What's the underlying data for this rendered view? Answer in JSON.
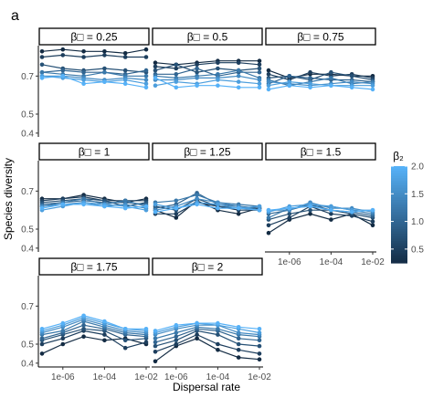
{
  "panel_letter": "a",
  "chart_data": {
    "type": "line",
    "layout": "facet-grid",
    "xlabel": "Dispersal rate",
    "ylabel": "Species diversity",
    "x_scale": "log10",
    "x": [
      1e-07,
      1e-06,
      1e-05,
      0.0001,
      0.001,
      0.01
    ],
    "x_ticks": [
      1e-06,
      0.0001,
      0.01
    ],
    "x_tick_labels": [
      "1e-06",
      "1e-04",
      "1e-02"
    ],
    "ylim": [
      0.38,
      0.86
    ],
    "y_ticks": [
      0.4,
      0.5,
      0.7
    ],
    "y_tick_labels": [
      "0.4",
      "0.5",
      "0.7"
    ],
    "grid": false,
    "legend": {
      "title": "β₂",
      "placement": "right",
      "type": "colorbar",
      "range": [
        0.25,
        2.0
      ],
      "ticks": [
        0.5,
        1.0,
        1.5,
        2.0
      ],
      "tick_labels": [
        "0.5",
        "1.0",
        "1.5",
        "2.0"
      ],
      "low_color": "#132b43",
      "high_color": "#56b1f7"
    },
    "panels": [
      {
        "strip": "β□ =  0.25",
        "series": [
          {
            "value": 0.25,
            "values": [
              0.83,
              0.84,
              0.83,
              0.83,
              0.82,
              0.84
            ]
          },
          {
            "value": 0.5,
            "values": [
              0.8,
              0.81,
              0.8,
              0.81,
              0.8,
              0.8
            ]
          },
          {
            "value": 0.75,
            "values": [
              0.76,
              0.74,
              0.73,
              0.74,
              0.73,
              0.72
            ]
          },
          {
            "value": 1.0,
            "values": [
              0.72,
              0.73,
              0.72,
              0.72,
              0.71,
              0.73
            ]
          },
          {
            "value": 1.25,
            "values": [
              0.72,
              0.71,
              0.7,
              0.72,
              0.7,
              0.7
            ]
          },
          {
            "value": 1.5,
            "values": [
              0.7,
              0.7,
              0.69,
              0.68,
              0.69,
              0.68
            ]
          },
          {
            "value": 1.75,
            "values": [
              0.7,
              0.69,
              0.68,
              0.67,
              0.68,
              0.66
            ]
          },
          {
            "value": 2.0,
            "values": [
              0.69,
              0.7,
              0.66,
              0.67,
              0.66,
              0.64
            ]
          }
        ]
      },
      {
        "strip": "β□ =  0.5",
        "series": [
          {
            "value": 0.25,
            "values": [
              0.77,
              0.76,
              0.77,
              0.78,
              0.78,
              0.78
            ]
          },
          {
            "value": 0.5,
            "values": [
              0.75,
              0.74,
              0.76,
              0.77,
              0.77,
              0.76
            ]
          },
          {
            "value": 0.75,
            "values": [
              0.73,
              0.76,
              0.72,
              0.74,
              0.73,
              0.74
            ]
          },
          {
            "value": 1.0,
            "values": [
              0.71,
              0.71,
              0.74,
              0.7,
              0.72,
              0.72
            ]
          },
          {
            "value": 1.25,
            "values": [
              0.7,
              0.69,
              0.7,
              0.71,
              0.73,
              0.69
            ]
          },
          {
            "value": 1.5,
            "values": [
              0.68,
              0.68,
              0.69,
              0.69,
              0.7,
              0.68
            ]
          },
          {
            "value": 1.75,
            "values": [
              0.65,
              0.67,
              0.66,
              0.68,
              0.67,
              0.66
            ]
          },
          {
            "value": 2.0,
            "values": [
              0.69,
              0.64,
              0.65,
              0.65,
              0.64,
              0.64
            ]
          }
        ]
      },
      {
        "strip": "β□ =  0.75",
        "series": [
          {
            "value": 0.25,
            "values": [
              0.73,
              0.69,
              0.71,
              0.71,
              0.7,
              0.7
            ]
          },
          {
            "value": 0.5,
            "values": [
              0.71,
              0.68,
              0.72,
              0.7,
              0.71,
              0.69
            ]
          },
          {
            "value": 0.75,
            "values": [
              0.69,
              0.7,
              0.68,
              0.72,
              0.7,
              0.68
            ]
          },
          {
            "value": 1.0,
            "values": [
              0.66,
              0.7,
              0.69,
              0.68,
              0.68,
              0.67
            ]
          },
          {
            "value": 1.25,
            "values": [
              0.68,
              0.65,
              0.67,
              0.69,
              0.66,
              0.67
            ]
          },
          {
            "value": 1.5,
            "values": [
              0.67,
              0.66,
              0.65,
              0.66,
              0.67,
              0.66
            ]
          },
          {
            "value": 1.75,
            "values": [
              0.65,
              0.67,
              0.66,
              0.65,
              0.65,
              0.65
            ]
          },
          {
            "value": 2.0,
            "values": [
              0.63,
              0.65,
              0.64,
              0.65,
              0.64,
              0.63
            ]
          }
        ]
      },
      {
        "strip": "β□ =  1",
        "series": [
          {
            "value": 0.25,
            "values": [
              0.66,
              0.66,
              0.68,
              0.66,
              0.64,
              0.66
            ]
          },
          {
            "value": 0.5,
            "values": [
              0.65,
              0.66,
              0.67,
              0.65,
              0.65,
              0.65
            ]
          },
          {
            "value": 0.75,
            "values": [
              0.64,
              0.65,
              0.66,
              0.65,
              0.62,
              0.64
            ]
          },
          {
            "value": 1.0,
            "values": [
              0.63,
              0.64,
              0.65,
              0.64,
              0.64,
              0.63
            ]
          },
          {
            "value": 1.25,
            "values": [
              0.62,
              0.64,
              0.66,
              0.63,
              0.65,
              0.62
            ]
          },
          {
            "value": 1.5,
            "values": [
              0.62,
              0.63,
              0.64,
              0.62,
              0.63,
              0.61
            ]
          },
          {
            "value": 1.75,
            "values": [
              0.6,
              0.62,
              0.64,
              0.63,
              0.62,
              0.6
            ]
          },
          {
            "value": 2.0,
            "values": [
              0.61,
              0.63,
              0.63,
              0.62,
              0.61,
              0.62
            ]
          }
        ]
      },
      {
        "strip": "β□ =  1.25",
        "series": [
          {
            "value": 0.25,
            "values": [
              0.6,
              0.56,
              0.65,
              0.6,
              0.58,
              0.61
            ]
          },
          {
            "value": 0.5,
            "values": [
              0.58,
              0.58,
              0.64,
              0.62,
              0.6,
              0.6
            ]
          },
          {
            "value": 0.75,
            "values": [
              0.62,
              0.6,
              0.66,
              0.62,
              0.61,
              0.61
            ]
          },
          {
            "value": 1.0,
            "values": [
              0.61,
              0.63,
              0.69,
              0.63,
              0.62,
              0.61
            ]
          },
          {
            "value": 1.25,
            "values": [
              0.64,
              0.65,
              0.68,
              0.64,
              0.63,
              0.62
            ]
          },
          {
            "value": 1.5,
            "values": [
              0.6,
              0.62,
              0.66,
              0.64,
              0.62,
              0.6
            ]
          },
          {
            "value": 1.75,
            "values": [
              0.63,
              0.61,
              0.64,
              0.63,
              0.61,
              0.62
            ]
          },
          {
            "value": 2.0,
            "values": [
              0.59,
              0.61,
              0.63,
              0.61,
              0.61,
              0.6
            ]
          }
        ]
      },
      {
        "strip": "β□ =  1.5",
        "series": [
          {
            "value": 0.25,
            "values": [
              0.48,
              0.55,
              0.58,
              0.55,
              0.58,
              0.52
            ]
          },
          {
            "value": 0.5,
            "values": [
              0.52,
              0.56,
              0.62,
              0.58,
              0.57,
              0.54
            ]
          },
          {
            "value": 0.75,
            "values": [
              0.55,
              0.58,
              0.6,
              0.6,
              0.58,
              0.56
            ]
          },
          {
            "value": 1.0,
            "values": [
              0.58,
              0.6,
              0.63,
              0.6,
              0.59,
              0.57
            ]
          },
          {
            "value": 1.25,
            "values": [
              0.56,
              0.61,
              0.62,
              0.62,
              0.6,
              0.58
            ]
          },
          {
            "value": 1.5,
            "values": [
              0.6,
              0.6,
              0.64,
              0.61,
              0.61,
              0.59
            ]
          },
          {
            "value": 1.75,
            "values": [
              0.59,
              0.62,
              0.63,
              0.62,
              0.6,
              0.6
            ]
          },
          {
            "value": 2.0,
            "values": [
              0.6,
              0.61,
              0.62,
              0.6,
              0.59,
              0.6
            ]
          }
        ]
      },
      {
        "strip": "β□ =  1.75",
        "series": [
          {
            "value": 0.25,
            "values": [
              0.45,
              0.5,
              0.54,
              0.52,
              0.53,
              0.5
            ]
          },
          {
            "value": 0.5,
            "values": [
              0.5,
              0.53,
              0.57,
              0.55,
              0.48,
              0.51
            ]
          },
          {
            "value": 0.75,
            "values": [
              0.52,
              0.55,
              0.58,
              0.57,
              0.52,
              0.53
            ]
          },
          {
            "value": 1.0,
            "values": [
              0.53,
              0.56,
              0.6,
              0.58,
              0.55,
              0.54
            ]
          },
          {
            "value": 1.25,
            "values": [
              0.55,
              0.57,
              0.62,
              0.59,
              0.56,
              0.55
            ]
          },
          {
            "value": 1.5,
            "values": [
              0.56,
              0.59,
              0.63,
              0.6,
              0.57,
              0.56
            ]
          },
          {
            "value": 1.75,
            "values": [
              0.57,
              0.6,
              0.64,
              0.61,
              0.58,
              0.57
            ]
          },
          {
            "value": 2.0,
            "values": [
              0.58,
              0.61,
              0.65,
              0.62,
              0.58,
              0.58
            ]
          }
        ]
      },
      {
        "strip": "β□ =  2",
        "series": [
          {
            "value": 0.25,
            "values": [
              0.41,
              0.49,
              0.53,
              0.47,
              0.43,
              0.42
            ]
          },
          {
            "value": 0.5,
            "values": [
              0.46,
              0.5,
              0.55,
              0.5,
              0.47,
              0.45
            ]
          },
          {
            "value": 0.75,
            "values": [
              0.49,
              0.52,
              0.57,
              0.55,
              0.5,
              0.49
            ]
          },
          {
            "value": 1.0,
            "values": [
              0.51,
              0.54,
              0.58,
              0.57,
              0.53,
              0.52
            ]
          },
          {
            "value": 1.25,
            "values": [
              0.53,
              0.56,
              0.59,
              0.58,
              0.55,
              0.54
            ]
          },
          {
            "value": 1.5,
            "values": [
              0.55,
              0.58,
              0.6,
              0.6,
              0.56,
              0.55
            ]
          },
          {
            "value": 1.75,
            "values": [
              0.56,
              0.59,
              0.61,
              0.6,
              0.58,
              0.56
            ]
          },
          {
            "value": 2.0,
            "values": [
              0.57,
              0.6,
              0.61,
              0.61,
              0.59,
              0.58
            ]
          }
        ]
      }
    ]
  }
}
